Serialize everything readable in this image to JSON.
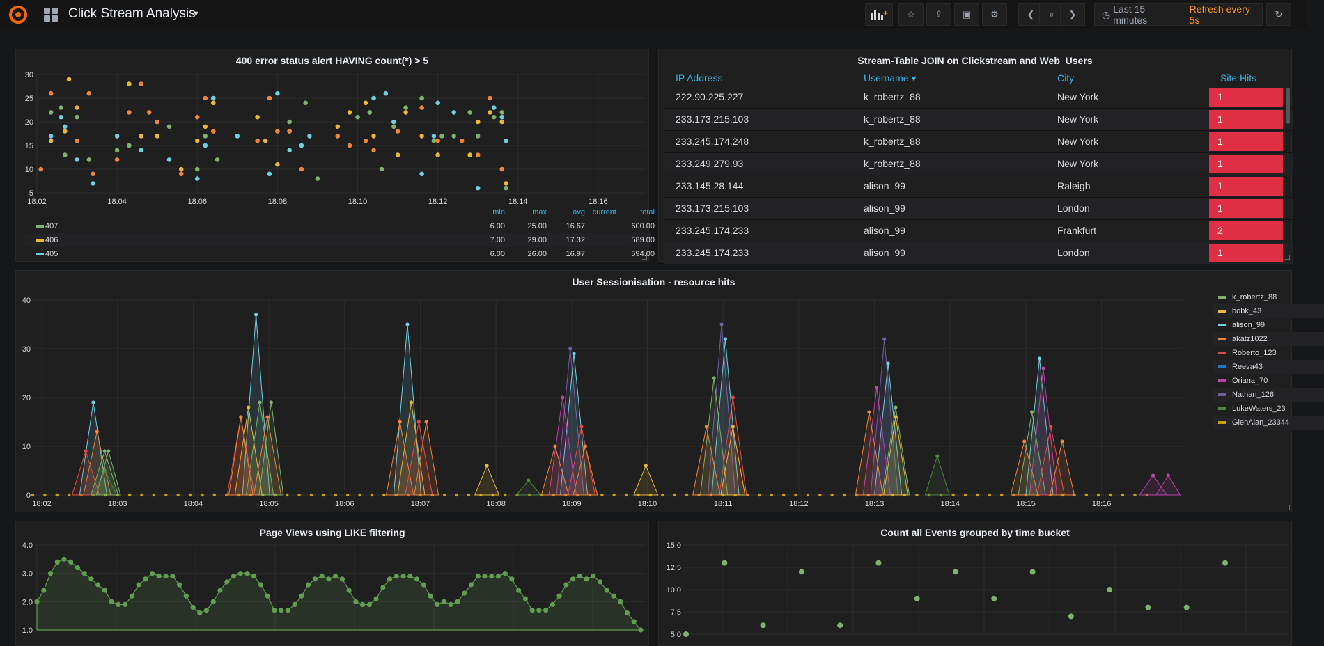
{
  "nav": {
    "title": "Click Stream Analysis",
    "time_range": "Last 15 minutes",
    "refresh": "Refresh every 5s",
    "icons": [
      "grafana-logo",
      "dashboards-icon",
      "add-panel-icon",
      "star-icon",
      "share-icon",
      "save-icon",
      "settings-icon",
      "back-icon",
      "zoom-out-icon",
      "forward-icon",
      "clock-icon",
      "refresh-icon"
    ]
  },
  "colors": {
    "green": "#629e51",
    "yellow": "#e5ac0e",
    "cyan": "#64b0c8",
    "orange": "#ef843c",
    "red": "#e24d42",
    "blue": "#1f78c1",
    "magenta": "#ba43a9",
    "purple": "#705da0",
    "darkgreen": "#508642",
    "gold": "#cca300"
  },
  "panel_errors": {
    "title": "400 error status alert HAVING count(*) > 5",
    "legend_headers": {
      "min": "min",
      "max": "max",
      "avg": "avg",
      "current": "current",
      "total": "total"
    },
    "legend": [
      {
        "name": "407",
        "min": "6.00",
        "max": "25.00",
        "avg": "16.67",
        "current": "",
        "total": "600.00",
        "color": "#7eb26d"
      },
      {
        "name": "406",
        "min": "7.00",
        "max": "29.00",
        "avg": "17.32",
        "current": "",
        "total": "589.00",
        "color": "#eab839"
      },
      {
        "name": "405",
        "min": "6.00",
        "max": "26.00",
        "avg": "16.97",
        "current": "",
        "total": "594.00",
        "color": "#6ed0e0"
      }
    ]
  },
  "panel_join": {
    "title": "Stream-Table JOIN on Clickstream and Web_Users",
    "headers": {
      "ip": "IP Address",
      "user": "Username ▾",
      "city": "City",
      "hits": "Site Hits"
    },
    "rows": [
      {
        "ip": "222.90.225.227",
        "user": "k_robertz_88",
        "city": "New York",
        "hits": "1"
      },
      {
        "ip": "233.173.215.103",
        "user": "k_robertz_88",
        "city": "New York",
        "hits": "1"
      },
      {
        "ip": "233.245.174.248",
        "user": "k_robertz_88",
        "city": "New York",
        "hits": "1"
      },
      {
        "ip": "233.249.279.93",
        "user": "k_robertz_88",
        "city": "New York",
        "hits": "1"
      },
      {
        "ip": "233.145.28.144",
        "user": "alison_99",
        "city": "Raleigh",
        "hits": "1"
      },
      {
        "ip": "233.173.215.103",
        "user": "alison_99",
        "city": "London",
        "hits": "1"
      },
      {
        "ip": "233.245.174.233",
        "user": "alison_99",
        "city": "Frankfurt",
        "hits": "2"
      },
      {
        "ip": "233.245.174.233",
        "user": "alison_99",
        "city": "London",
        "hits": "1"
      }
    ]
  },
  "panel_sessions": {
    "title": "User Sessionisation - resource hits",
    "legend": [
      {
        "name": "k_robertz_88",
        "color": "#7eb26d"
      },
      {
        "name": "bobk_43",
        "color": "#eab839"
      },
      {
        "name": "alison_99",
        "color": "#6ed0e0"
      },
      {
        "name": "akatz1022",
        "color": "#ef843c"
      },
      {
        "name": "Roberto_123",
        "color": "#e24d42"
      },
      {
        "name": "Reeva43",
        "color": "#1f78c1"
      },
      {
        "name": "Oriana_70",
        "color": "#ba43a9"
      },
      {
        "name": "Nathan_126",
        "color": "#705da0"
      },
      {
        "name": "LukeWaters_23",
        "color": "#508642"
      },
      {
        "name": "GlenAlan_23344",
        "color": "#cca300"
      }
    ]
  },
  "panel_pageviews": {
    "title": "Page Views using LIKE filtering"
  },
  "panel_events": {
    "title": "Count all Events grouped by time bucket"
  },
  "chart_data": [
    {
      "type": "scatter",
      "title": "400 error status alert HAVING count(*) > 5",
      "x_ticks": [
        "18:02",
        "18:04",
        "18:06",
        "18:08",
        "18:10",
        "18:12",
        "18:14",
        "18:16"
      ],
      "x_range": [
        0,
        15.2
      ],
      "ylim": [
        5,
        30
      ],
      "y_ticks": [
        5,
        10,
        15,
        20,
        25,
        30
      ],
      "series": [
        {
          "name": "407",
          "color": "#7eb26d",
          "points": [
            [
              0.35,
              22
            ],
            [
              0.6,
              23
            ],
            [
              0.7,
              13
            ],
            [
              1.0,
              21
            ],
            [
              1.3,
              12
            ],
            [
              2.0,
              14
            ],
            [
              2.3,
              15
            ],
            [
              3.3,
              19
            ],
            [
              4.0,
              10
            ],
            [
              4.2,
              17
            ],
            [
              4.5,
              12
            ],
            [
              6.3,
              20
            ],
            [
              6.7,
              24
            ],
            [
              7.0,
              8
            ],
            [
              7.5,
              17
            ],
            [
              8.0,
              21
            ],
            [
              8.3,
              22
            ],
            [
              8.6,
              10
            ],
            [
              8.9,
              19
            ],
            [
              9.2,
              23
            ],
            [
              9.6,
              25
            ],
            [
              9.9,
              16
            ],
            [
              10.1,
              17
            ],
            [
              10.4,
              17
            ],
            [
              10.8,
              22
            ],
            [
              11.0,
              17
            ],
            [
              11.4,
              21
            ],
            [
              11.6,
              22
            ],
            [
              11.7,
              6
            ]
          ]
        },
        {
          "name": "406",
          "color": "#eab839"
        },
        {
          "name": "405",
          "color": "#6ed0e0"
        }
      ]
    },
    {
      "type": "area",
      "title": "User Sessionisation - resource hits",
      "x_ticks": [
        "18:02",
        "18:03",
        "18:04",
        "18:05",
        "18:06",
        "18:07",
        "18:08",
        "18:09",
        "18:10",
        "18:11",
        "18:12",
        "18:13",
        "18:14",
        "18:15",
        "18:16"
      ],
      "ylim": [
        0,
        40
      ],
      "y_ticks": [
        0,
        10,
        20,
        30,
        40
      ],
      "peaks": [
        {
          "t": 0.8,
          "series": [
            {
              "name": "alison_99",
              "value": 19
            },
            {
              "name": "akatz1022",
              "value": 13
            },
            {
              "name": "Roberto_123",
              "value": 9
            },
            {
              "name": "k_robertz_88",
              "value": 9
            }
          ]
        },
        {
          "t": 2.95,
          "series": [
            {
              "name": "alison_99",
              "value": 37
            },
            {
              "name": "k_robertz_88",
              "value": 19
            },
            {
              "name": "bobk_43",
              "value": 18
            },
            {
              "name": "akatz1022",
              "value": 16
            },
            {
              "name": "Roberto_123",
              "value": 16
            }
          ]
        },
        {
          "t": 4.95,
          "series": [
            {
              "name": "alison_99",
              "value": 35
            },
            {
              "name": "bobk_43",
              "value": 19
            },
            {
              "name": "akatz1022",
              "value": 15
            },
            {
              "name": "Roberto_123",
              "value": 15
            }
          ]
        },
        {
          "t": 7.1,
          "series": [
            {
              "name": "Nathan_126",
              "value": 30
            },
            {
              "name": "alison_99",
              "value": 29
            },
            {
              "name": "Oriana_70",
              "value": 20
            },
            {
              "name": "Roberto_123",
              "value": 14
            },
            {
              "name": "akatz1022",
              "value": 10
            }
          ]
        },
        {
          "t": 9.1,
          "series": [
            {
              "name": "Nathan_126",
              "value": 35
            },
            {
              "name": "alison_99",
              "value": 32
            },
            {
              "name": "k_robertz_88",
              "value": 24
            },
            {
              "name": "Roberto_123",
              "value": 20
            },
            {
              "name": "akatz1022",
              "value": 14
            }
          ]
        },
        {
          "t": 11.25,
          "series": [
            {
              "name": "Nathan_126",
              "value": 32
            },
            {
              "name": "alison_99",
              "value": 27
            },
            {
              "name": "Oriana_70",
              "value": 22
            },
            {
              "name": "k_robertz_88",
              "value": 18
            },
            {
              "name": "akatz1022",
              "value": 17
            }
          ]
        },
        {
          "t": 13.3,
          "series": [
            {
              "name": "alison_99",
              "value": 28
            },
            {
              "name": "Oriana_70",
              "value": 26
            },
            {
              "name": "k_robertz_88",
              "value": 17
            },
            {
              "name": "Roberto_123",
              "value": 14
            },
            {
              "name": "akatz1022",
              "value": 11
            }
          ]
        },
        {
          "t": 14.8,
          "series": [
            {
              "name": "Oriana_70",
              "value": 4
            }
          ]
        }
      ]
    },
    {
      "type": "area",
      "title": "Page Views using LIKE filtering",
      "ylim": [
        1.0,
        4.0
      ],
      "y_ticks": [
        "1.0",
        "2.0",
        "3.0",
        "4.0"
      ],
      "values": [
        2.0,
        2.4,
        3.0,
        3.4,
        3.5,
        3.4,
        3.2,
        3.0,
        2.8,
        2.6,
        2.4,
        2.0,
        1.9,
        1.9,
        2.2,
        2.6,
        2.8,
        3.0,
        2.9,
        2.9,
        2.9,
        2.6,
        2.2,
        1.8,
        1.6,
        1.7,
        2.0,
        2.4,
        2.7,
        2.9,
        3.0,
        3.0,
        2.9,
        2.6,
        2.2,
        1.7,
        1.7,
        1.7,
        1.9,
        2.2,
        2.6,
        2.8,
        2.9,
        2.8,
        2.9,
        2.8,
        2.4,
        2.0,
        1.9,
        1.9,
        2.1,
        2.5,
        2.8,
        2.9,
        2.9,
        2.9,
        2.8,
        2.6,
        2.2,
        1.9,
        2.0,
        1.9,
        2.0,
        2.3,
        2.6,
        2.9,
        2.9,
        2.9,
        2.9,
        3.0,
        2.8,
        2.4,
        2.1,
        1.7,
        1.7,
        1.7,
        1.9,
        2.2,
        2.6,
        2.8,
        2.9,
        2.8,
        2.9,
        2.7,
        2.4,
        2.2,
        2.0,
        1.6,
        1.3,
        1.0
      ]
    },
    {
      "type": "scatter",
      "title": "Count all Events grouped by time bucket",
      "ylim": [
        5.0,
        15.0
      ],
      "y_ticks": [
        "5.0",
        "7.5",
        "10.0",
        "12.5",
        "15.0"
      ],
      "values": [
        5,
        13,
        6,
        12,
        6,
        13,
        9,
        12,
        9,
        12,
        7,
        10,
        8,
        8,
        13
      ]
    }
  ]
}
